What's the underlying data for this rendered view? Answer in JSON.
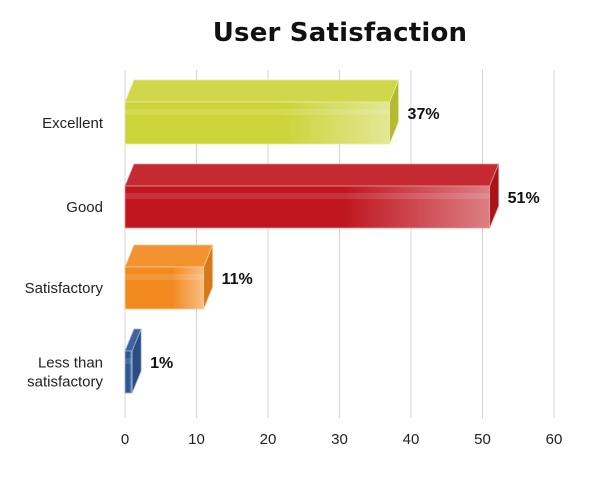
{
  "chart_data": {
    "type": "bar",
    "orientation": "horizontal",
    "title": "User Satisfaction",
    "categories": [
      [
        "Excellent"
      ],
      [
        "Good"
      ],
      [
        "Satisfactory"
      ],
      [
        "Less than",
        "satisfactory"
      ]
    ],
    "values": [
      37,
      51,
      11,
      1
    ],
    "value_labels": [
      "37%",
      "51%",
      "11%",
      "1%"
    ],
    "colors": [
      "#ccd43a",
      "#c0161f",
      "#f28a1e",
      "#2f5797"
    ],
    "xlim": [
      0,
      60
    ],
    "xticks": [
      "0",
      "10",
      "20",
      "30",
      "40",
      "50",
      "60"
    ],
    "grid": "vertical",
    "style": "3d"
  }
}
